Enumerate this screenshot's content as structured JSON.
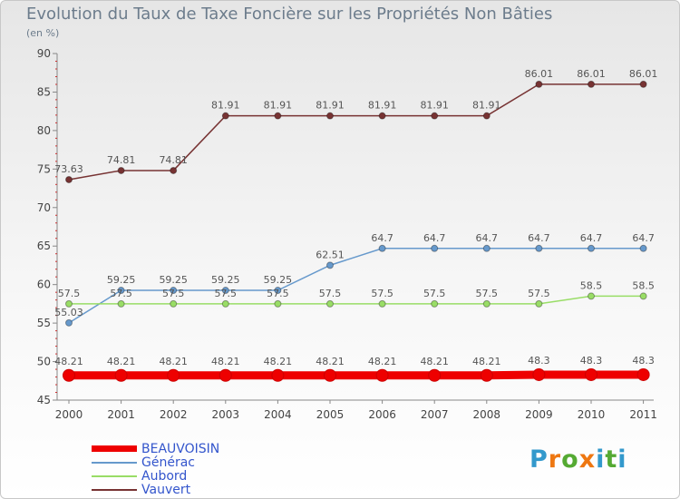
{
  "chart_data": {
    "type": "line",
    "title": "Evolution du Taux de Taxe Foncière sur les Propriétés Non Bâties",
    "ylabel": "(en %)",
    "xlabel": "",
    "categories": [
      "2000",
      "2001",
      "2002",
      "2003",
      "2004",
      "2005",
      "2006",
      "2007",
      "2008",
      "2009",
      "2010",
      "2011"
    ],
    "ylim": [
      45,
      90
    ],
    "yticks": [
      45,
      50,
      55,
      60,
      65,
      70,
      75,
      80,
      85,
      90
    ],
    "series": [
      {
        "name": "BEAUVOISIN",
        "color": "#ee0000",
        "values": [
          48.21,
          48.21,
          48.21,
          48.21,
          48.21,
          48.21,
          48.21,
          48.21,
          48.21,
          48.3,
          48.3,
          48.3
        ],
        "labels": [
          "48.21",
          "48.21",
          "48.21",
          "48.21",
          "48.21",
          "48.21",
          "48.21",
          "48.21",
          "48.21",
          "48.3",
          "48.3",
          "48.3"
        ]
      },
      {
        "name": "Générac",
        "color": "#6699cc",
        "values": [
          55.03,
          59.25,
          59.25,
          59.25,
          59.25,
          62.51,
          64.7,
          64.7,
          64.7,
          64.7,
          64.7,
          64.7
        ],
        "labels": [
          "55.03",
          "59.25",
          "59.25",
          "59.25",
          "59.25",
          "62.51",
          "64.7",
          "64.7",
          "64.7",
          "64.7",
          "64.7",
          "64.7"
        ]
      },
      {
        "name": "Aubord",
        "color": "#99dd66",
        "values": [
          57.5,
          57.5,
          57.5,
          57.5,
          57.5,
          57.5,
          57.5,
          57.5,
          57.5,
          57.5,
          58.5,
          58.5
        ],
        "labels": [
          "57.5",
          "57.5",
          "57.5",
          "57.5",
          "57.5",
          "57.5",
          "57.5",
          "57.5",
          "57.5",
          "57.5",
          "58.5",
          "58.5"
        ]
      },
      {
        "name": "Vauvert",
        "color": "#773333",
        "values": [
          73.63,
          74.81,
          74.81,
          81.91,
          81.91,
          81.91,
          81.91,
          81.91,
          81.91,
          86.01,
          86.01,
          86.01
        ],
        "labels": [
          "73.63",
          "74.81",
          "74.81",
          "81.91",
          "81.91",
          "81.91",
          "81.91",
          "81.91",
          "81.91",
          "86.01",
          "86.01",
          "86.01"
        ]
      }
    ]
  },
  "logo": {
    "text": "Proxiti"
  }
}
